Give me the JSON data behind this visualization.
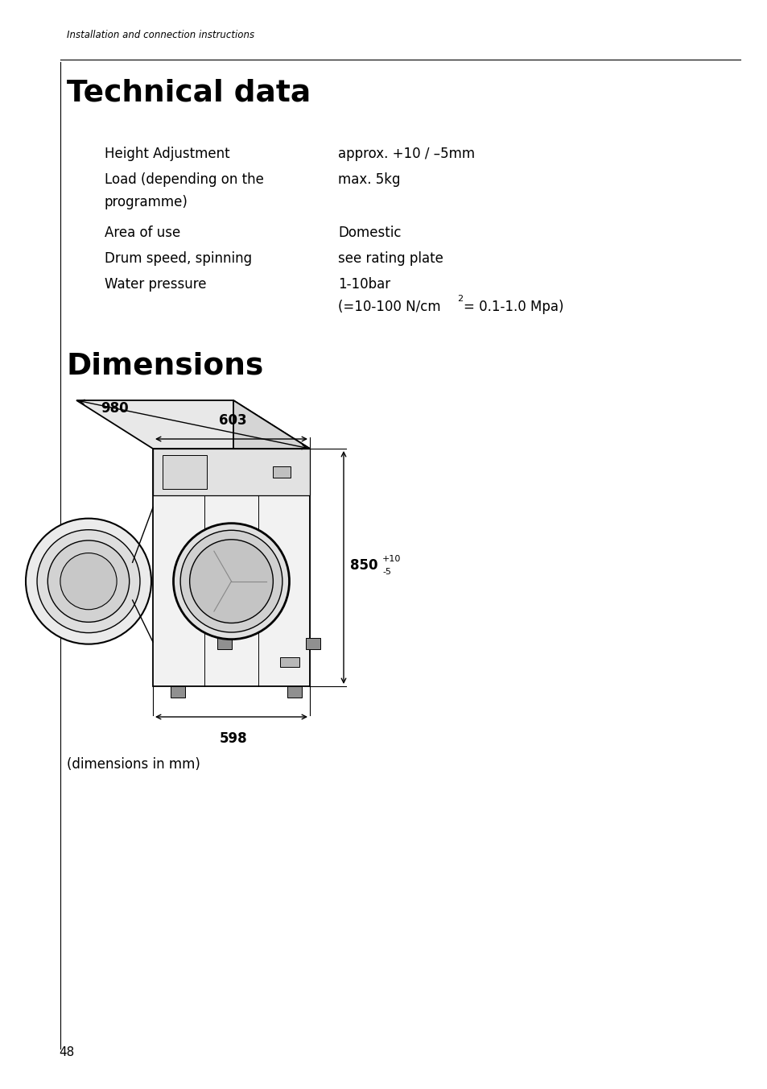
{
  "bg_color": "#ffffff",
  "header_text": "Installation and connection instructions",
  "title1": "Technical data",
  "title2": "Dimensions",
  "dim_980": "980",
  "dim_603": "603",
  "dim_850": "850",
  "dim_850_sup": "+10",
  "dim_850_sub": "-5",
  "dim_598": "598",
  "dim_caption": "(dimensions in mm)",
  "page_number": "48"
}
